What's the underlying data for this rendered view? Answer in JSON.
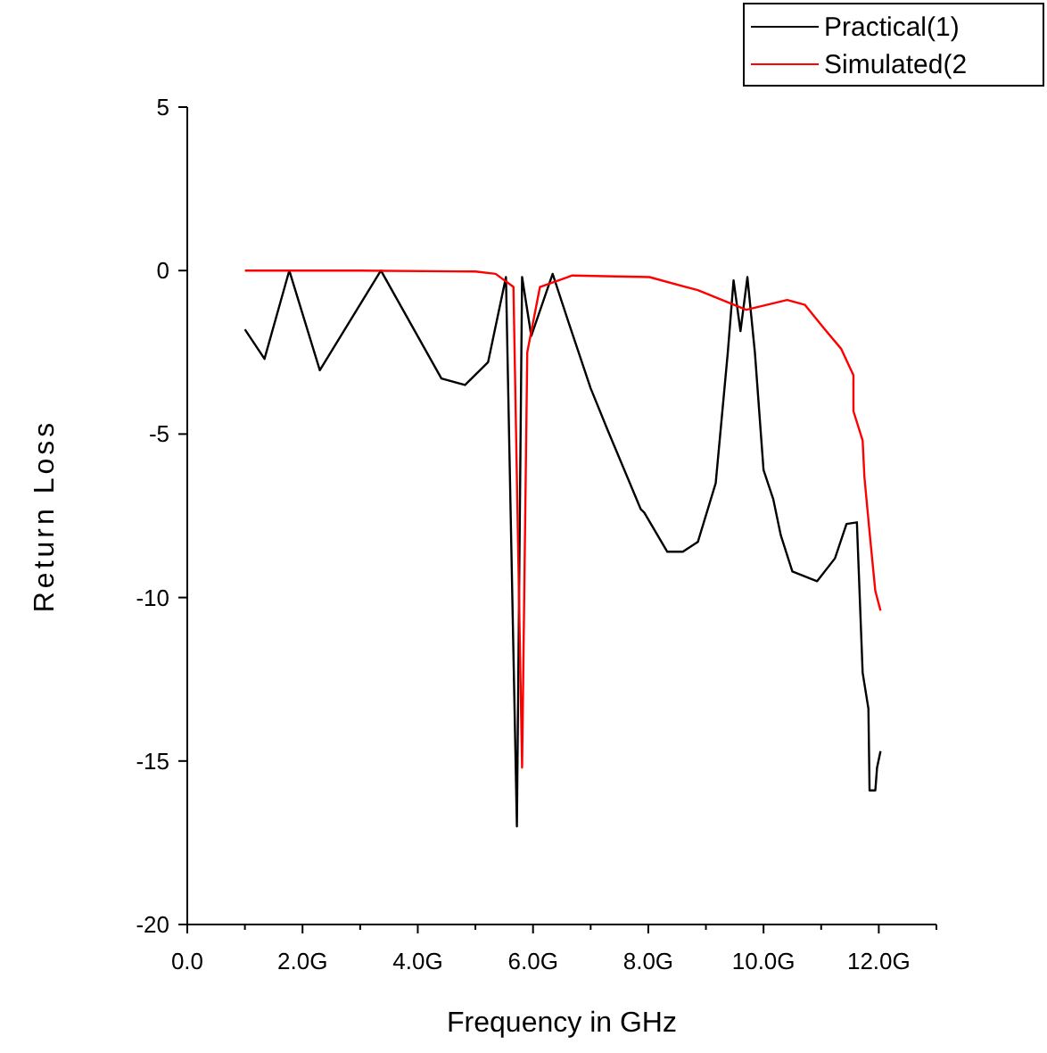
{
  "chart_data": {
    "type": "line",
    "xlabel": "Frequency in GHz",
    "ylabel": "Return Loss",
    "xlim": [
      0,
      13
    ],
    "ylim": [
      -20,
      5
    ],
    "xticks": [
      {
        "value": 0,
        "label": "0.0"
      },
      {
        "value": 1,
        "label": null
      },
      {
        "value": 2,
        "label": "2.0G"
      },
      {
        "value": 3,
        "label": null
      },
      {
        "value": 4,
        "label": "4.0G"
      },
      {
        "value": 5,
        "label": null
      },
      {
        "value": 6,
        "label": "6.0G"
      },
      {
        "value": 7,
        "label": null
      },
      {
        "value": 8,
        "label": "8.0G"
      },
      {
        "value": 9,
        "label": null
      },
      {
        "value": 10,
        "label": "10.0G"
      },
      {
        "value": 11,
        "label": null
      },
      {
        "value": 12,
        "label": "12.0G"
      },
      {
        "value": 13,
        "label": null
      }
    ],
    "yticks": [
      -20,
      -15,
      -10,
      -5,
      0,
      5
    ],
    "grid": false,
    "legend": "top right",
    "line_style": "solid",
    "marker": "none",
    "series": [
      {
        "name": "Practical(1)",
        "color": "#000000",
        "x": [
          1.0,
          1.34,
          1.77,
          2.3,
          3.36,
          4.41,
          4.82,
          5.22,
          5.53,
          5.72,
          5.81,
          5.97,
          6.34,
          6.62,
          7.0,
          7.3,
          7.87,
          7.93,
          8.33,
          8.6,
          8.86,
          9.17,
          9.38,
          9.48,
          9.6,
          9.72,
          9.85,
          10.0,
          10.17,
          10.3,
          10.5,
          10.93,
          11.24,
          11.44,
          11.62,
          11.72,
          11.82,
          11.84,
          11.94,
          11.97,
          12.03
        ],
        "values": [
          -1.8,
          -2.7,
          0,
          -3.05,
          0,
          -3.3,
          -3.5,
          -2.8,
          -0.2,
          -17,
          -0.2,
          -2.0,
          -0.1,
          -1.6,
          -3.6,
          -4.9,
          -7.3,
          -7.4,
          -8.6,
          -8.6,
          -8.3,
          -6.5,
          -2.5,
          -0.3,
          -1.85,
          -0.2,
          -2.5,
          -6.1,
          -7.0,
          -8.1,
          -9.2,
          -9.5,
          -8.8,
          -7.75,
          -7.7,
          -12.3,
          -13.4,
          -15.9,
          -15.9,
          -15.2,
          -14.7
        ]
      },
      {
        "name": "Simulated(2",
        "color": "#ff0000",
        "x": [
          1.0,
          3.0,
          5.0,
          5.35,
          5.66,
          5.81,
          5.9,
          6.12,
          6.6,
          6.68,
          8.02,
          8.86,
          9.7,
          10.41,
          10.72,
          11.04,
          11.35,
          11.56,
          11.56,
          11.72,
          11.75,
          11.84,
          11.94,
          12.03
        ],
        "values": [
          0,
          0,
          -0.03,
          -0.1,
          -0.5,
          -15.2,
          -2.5,
          -0.5,
          -0.2,
          -0.15,
          -0.2,
          -0.6,
          -1.2,
          -0.9,
          -1.05,
          -1.75,
          -2.4,
          -3.2,
          -4.3,
          -5.2,
          -6.3,
          -8.0,
          -9.8,
          -10.4
        ]
      }
    ]
  }
}
